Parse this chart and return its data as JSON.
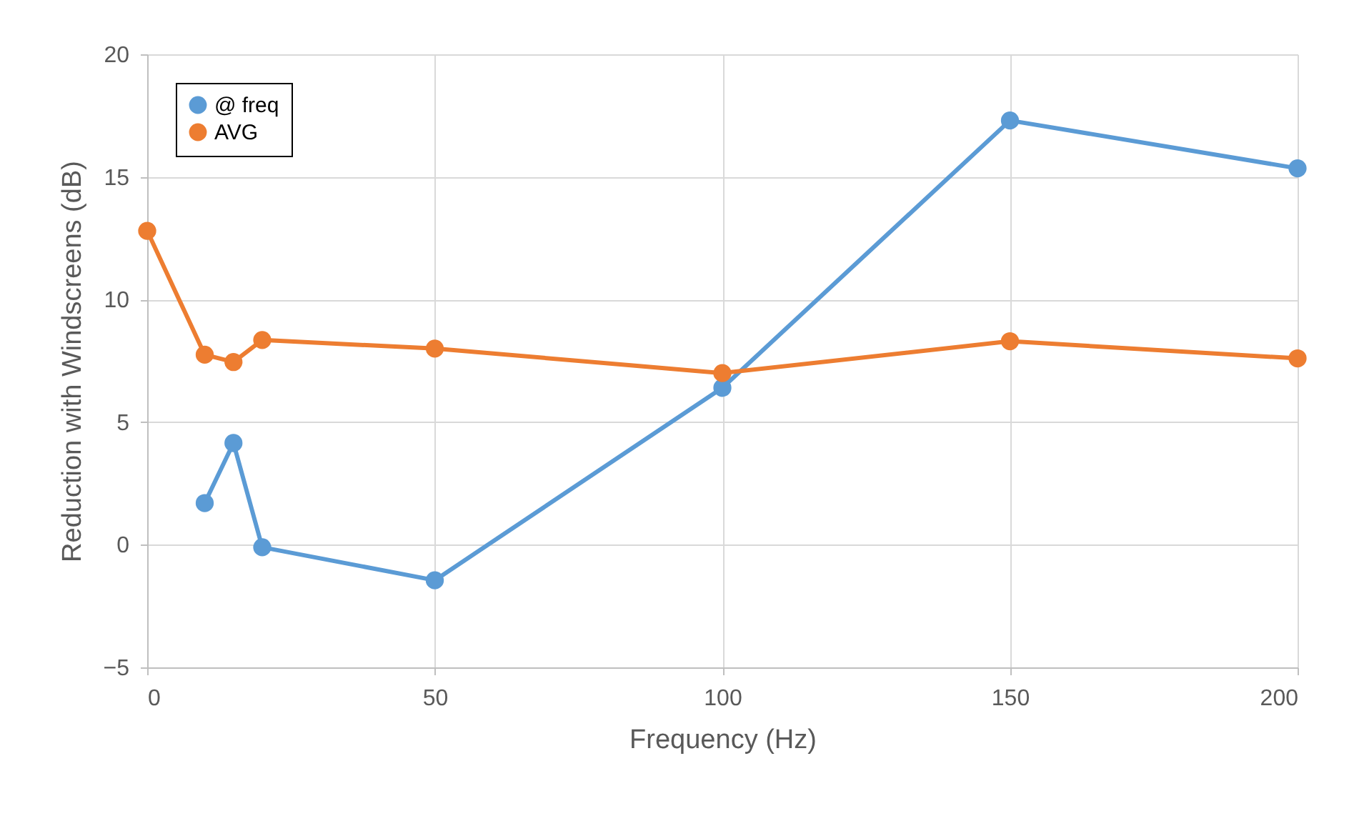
{
  "chart_data": {
    "type": "line",
    "xlabel": "Frequency (Hz)",
    "ylabel": "Reduction with Windscreens (dB)",
    "series": [
      {
        "name": "@ freq",
        "color": "#5b9bd5",
        "x": [
          10,
          15,
          20,
          50,
          100,
          150,
          200
        ],
        "values": [
          1.7,
          4.15,
          -0.1,
          -1.45,
          6.4,
          17.3,
          15.35
        ]
      },
      {
        "name": "AVG",
        "color": "#ed7d31",
        "x": [
          0,
          10,
          15,
          20,
          50,
          100,
          150,
          200
        ],
        "values": [
          12.8,
          7.75,
          7.45,
          8.35,
          8.0,
          7.0,
          8.3,
          7.6
        ]
      }
    ],
    "xlim": [
      0,
      200
    ],
    "xticks": [
      0,
      50,
      100,
      150,
      200
    ],
    "ylim": [
      -5,
      20
    ],
    "yticks": [
      -5,
      0,
      5,
      10,
      15,
      20
    ],
    "grid": true,
    "legend": "top left",
    "marker": "circle",
    "line_style": "solid"
  }
}
